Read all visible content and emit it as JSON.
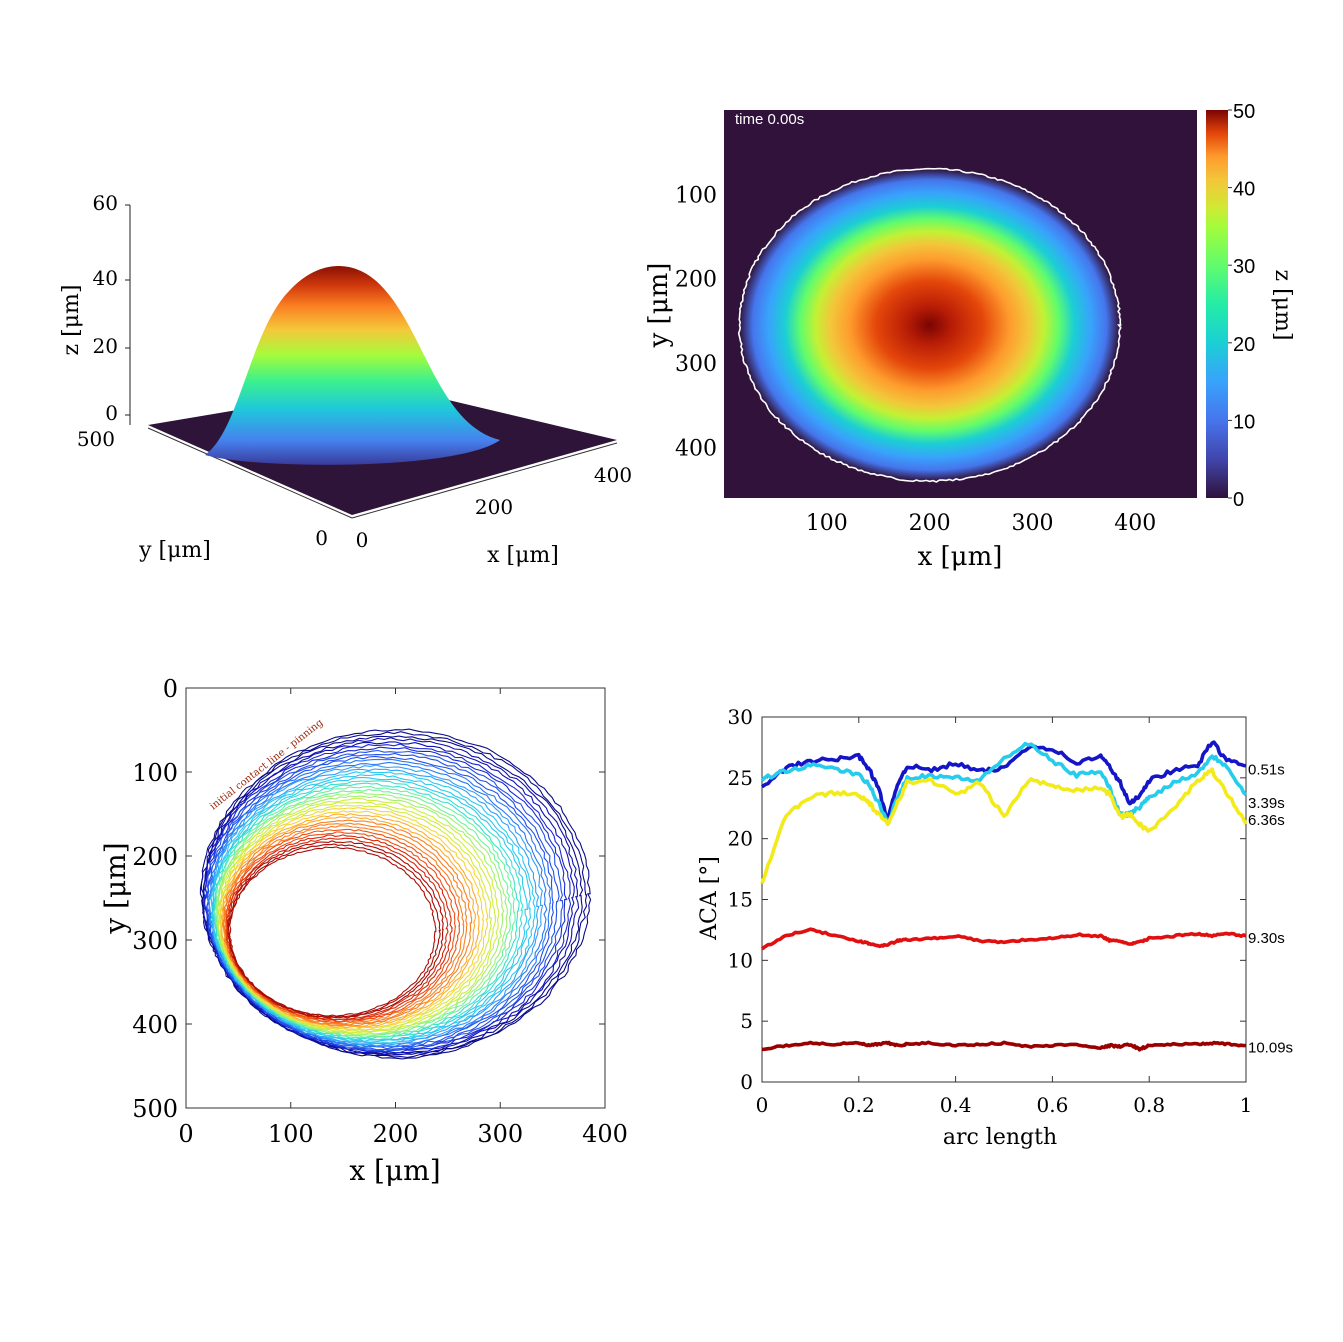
{
  "chart_data": [
    {
      "type": "surface3d",
      "zlabel": "z [μm]",
      "xlabel": "x [μm]",
      "ylabel": "y [μm]",
      "zticks": [
        "60",
        "40",
        "20",
        "0"
      ],
      "xticks": [
        "0",
        "200",
        "400"
      ],
      "yticks": [
        "500",
        "0"
      ],
      "peak_z": 46
    },
    {
      "type": "heatmap",
      "annotation": "time 0.00s",
      "xlabel": "x [μm]",
      "ylabel": "y [μm]",
      "xticks": [
        "100",
        "200",
        "300",
        "400"
      ],
      "yticks": [
        "100",
        "200",
        "300",
        "400"
      ],
      "xlim": [
        0,
        460
      ],
      "ylim": [
        460,
        0
      ],
      "colorbar_label": "z [μm]",
      "colorbar_ticks": [
        "50",
        "40",
        "30",
        "20",
        "10",
        "0"
      ],
      "colorbar_range": [
        0,
        50
      ],
      "drop_center": [
        200,
        255
      ],
      "contact_line_radius": [
        185,
        185
      ],
      "max_height": 50
    },
    {
      "type": "contour",
      "annotation": "initial contact line - pinning",
      "xlabel": "x [μm]",
      "ylabel": "y [μm]",
      "xticks": [
        "0",
        "100",
        "200",
        "300",
        "400"
      ],
      "yticks": [
        "0",
        "100",
        "200",
        "300",
        "400",
        "500"
      ],
      "xlim": [
        0,
        400
      ],
      "ylim": [
        500,
        0
      ],
      "outer_contour": {
        "cx": 200,
        "cy": 245,
        "rx": 185,
        "ry": 195
      },
      "inner_contour": {
        "cx": 140,
        "cy": 290,
        "rx": 98,
        "ry": 100
      },
      "n_contours": 40
    },
    {
      "type": "line",
      "xlabel": "arc length",
      "ylabel": "ACA [°]",
      "xlim": [
        0,
        1
      ],
      "ylim": [
        0,
        30
      ],
      "xticks": [
        "0",
        "0.2",
        "0.4",
        "0.6",
        "0.8",
        "1"
      ],
      "yticks": [
        "0",
        "5",
        "10",
        "15",
        "20",
        "25",
        "30"
      ],
      "x": [
        0,
        0.05,
        0.1,
        0.15,
        0.2,
        0.22,
        0.24,
        0.26,
        0.28,
        0.3,
        0.35,
        0.4,
        0.45,
        0.5,
        0.55,
        0.6,
        0.65,
        0.7,
        0.72,
        0.74,
        0.76,
        0.78,
        0.8,
        0.85,
        0.9,
        0.93,
        0.96,
        1.0
      ],
      "series": [
        {
          "name": "0.51s",
          "color": "#1515c8",
          "values": [
            24.2,
            25.8,
            26.4,
            26.5,
            26.8,
            25.8,
            24.2,
            21.5,
            24.5,
            26.0,
            25.6,
            26.2,
            25.5,
            25.8,
            27.6,
            27.4,
            26.2,
            26.8,
            25.8,
            24.6,
            22.8,
            23.6,
            24.8,
            25.6,
            26.0,
            28.0,
            26.4,
            26.0
          ]
        },
        {
          "name": "3.39s",
          "color": "#26ccec",
          "values": [
            24.9,
            25.6,
            26.0,
            25.8,
            25.2,
            24.5,
            23.0,
            21.2,
            23.5,
            25.0,
            25.2,
            25.0,
            24.8,
            26.6,
            27.8,
            26.4,
            25.2,
            25.6,
            24.0,
            22.0,
            22.0,
            22.6,
            23.4,
            24.6,
            25.4,
            26.8,
            26.0,
            23.6
          ]
        },
        {
          "name": "6.36s",
          "color": "#f3ea1a",
          "values": [
            16.4,
            22.0,
            23.4,
            23.8,
            23.6,
            23.0,
            22.0,
            21.2,
            23.0,
            24.6,
            24.8,
            23.6,
            24.6,
            21.8,
            24.8,
            24.4,
            24.0,
            24.2,
            23.6,
            21.8,
            22.0,
            21.2,
            20.6,
            22.4,
            24.8,
            25.6,
            23.8,
            21.2
          ]
        },
        {
          "name": "9.30s",
          "color": "#e01010",
          "values": [
            11.0,
            12.0,
            12.6,
            12.0,
            11.6,
            11.4,
            11.2,
            11.3,
            11.6,
            11.7,
            11.8,
            12.0,
            11.6,
            11.5,
            11.7,
            11.8,
            12.1,
            12.0,
            11.6,
            11.6,
            11.3,
            11.5,
            11.8,
            12.0,
            12.2,
            12.0,
            12.2,
            12.0
          ]
        },
        {
          "name": "10.09s",
          "color": "#9a0000",
          "values": [
            2.7,
            3.0,
            3.2,
            3.1,
            3.2,
            3.0,
            3.1,
            3.2,
            3.0,
            3.1,
            3.2,
            3.0,
            3.1,
            3.2,
            2.9,
            3.0,
            3.1,
            2.8,
            3.0,
            2.9,
            3.1,
            2.7,
            3.0,
            3.1,
            3.1,
            3.2,
            3.1,
            3.0
          ]
        }
      ]
    }
  ]
}
